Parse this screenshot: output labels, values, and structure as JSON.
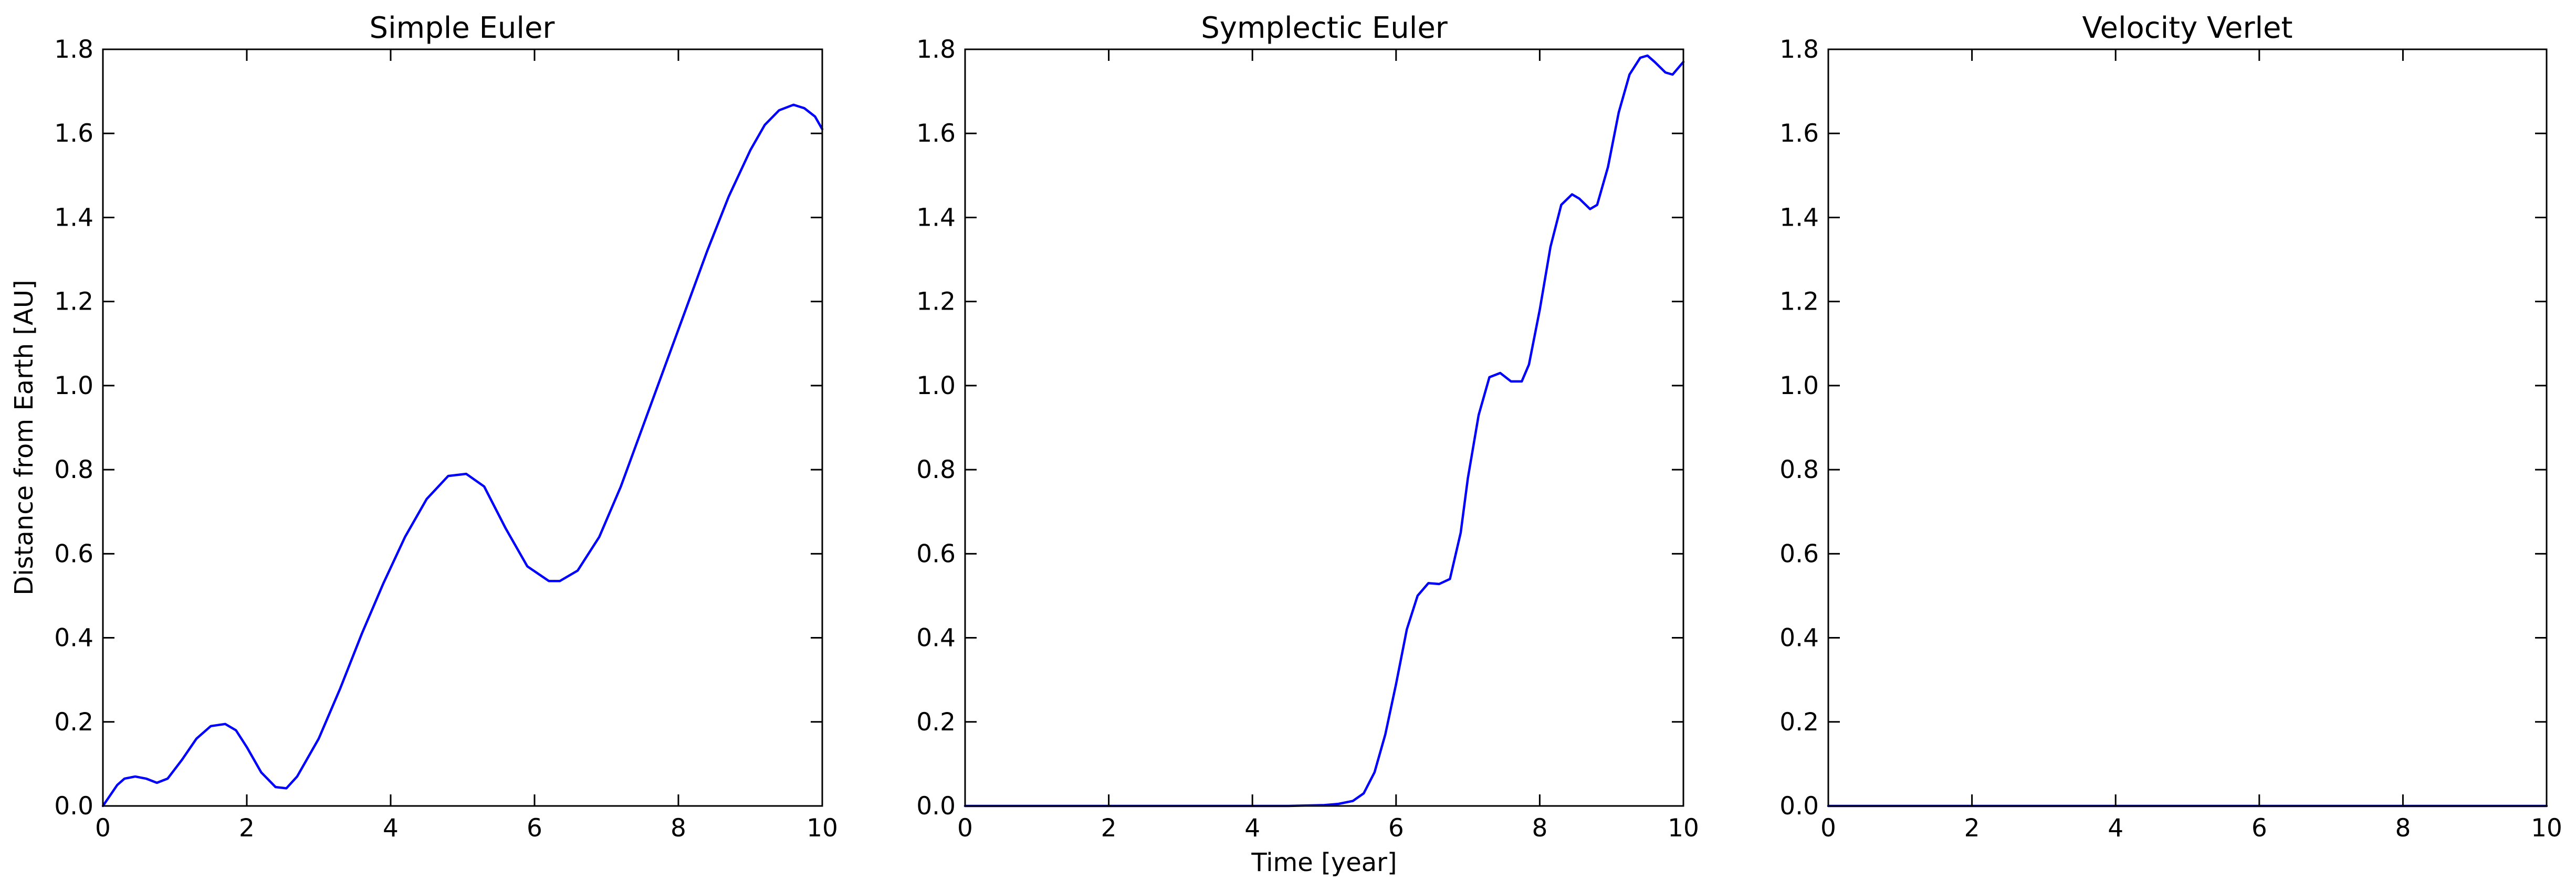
{
  "chart_data": [
    {
      "type": "line",
      "title": "Simple Euler",
      "xlabel": "",
      "ylabel": "Distance from Earth [AU]",
      "xlim": [
        0,
        10
      ],
      "ylim": [
        0,
        1.8
      ],
      "xticks": [
        0,
        2,
        4,
        6,
        8,
        10
      ],
      "yticks": [
        0.0,
        0.2,
        0.4,
        0.6,
        0.8,
        1.0,
        1.2,
        1.4,
        1.6,
        1.8
      ],
      "xtick_labels": [
        "0",
        "2",
        "4",
        "6",
        "8",
        "10"
      ],
      "ytick_labels": [
        "0.0",
        "0.2",
        "0.4",
        "0.6",
        "0.8",
        "1.0",
        "1.2",
        "1.4",
        "1.6",
        "1.8"
      ],
      "grid": false,
      "series": [
        {
          "name": "distance",
          "color": "#0000ff",
          "x": [
            0,
            0.1,
            0.2,
            0.3,
            0.45,
            0.6,
            0.75,
            0.9,
            1.1,
            1.3,
            1.5,
            1.7,
            1.85,
            2.0,
            2.2,
            2.4,
            2.55,
            2.7,
            3.0,
            3.3,
            3.6,
            3.9,
            4.2,
            4.5,
            4.8,
            5.05,
            5.3,
            5.6,
            5.9,
            6.2,
            6.35,
            6.6,
            6.9,
            7.2,
            7.5,
            7.8,
            8.1,
            8.4,
            8.7,
            9.0,
            9.2,
            9.4,
            9.6,
            9.75,
            9.9,
            10.0
          ],
          "y": [
            0.0,
            0.025,
            0.05,
            0.065,
            0.07,
            0.065,
            0.055,
            0.065,
            0.11,
            0.16,
            0.19,
            0.195,
            0.18,
            0.14,
            0.08,
            0.045,
            0.042,
            0.07,
            0.16,
            0.28,
            0.41,
            0.53,
            0.64,
            0.73,
            0.785,
            0.79,
            0.76,
            0.66,
            0.57,
            0.535,
            0.535,
            0.56,
            0.64,
            0.76,
            0.9,
            1.04,
            1.18,
            1.32,
            1.45,
            1.56,
            1.62,
            1.655,
            1.668,
            1.66,
            1.64,
            1.61
          ]
        }
      ]
    },
    {
      "type": "line",
      "title": "Symplectic Euler",
      "xlabel": "Time [year]",
      "ylabel": "",
      "xlim": [
        0,
        10
      ],
      "ylim": [
        0,
        1.8
      ],
      "xticks": [
        0,
        2,
        4,
        6,
        8,
        10
      ],
      "yticks": [
        0.0,
        0.2,
        0.4,
        0.6,
        0.8,
        1.0,
        1.2,
        1.4,
        1.6,
        1.8
      ],
      "xtick_labels": [
        "0",
        "2",
        "4",
        "6",
        "8",
        "10"
      ],
      "ytick_labels": [
        "0.0",
        "0.2",
        "0.4",
        "0.6",
        "0.8",
        "1.0",
        "1.2",
        "1.4",
        "1.6",
        "1.8"
      ],
      "grid": false,
      "series": [
        {
          "name": "distance",
          "color": "#0000ff",
          "x": [
            0,
            1,
            2,
            3,
            4,
            4.5,
            5.0,
            5.2,
            5.4,
            5.55,
            5.7,
            5.85,
            6.0,
            6.15,
            6.3,
            6.45,
            6.6,
            6.75,
            6.9,
            7.0,
            7.15,
            7.3,
            7.45,
            7.6,
            7.75,
            7.85,
            8.0,
            8.15,
            8.3,
            8.45,
            8.55,
            8.7,
            8.8,
            8.95,
            9.1,
            9.25,
            9.4,
            9.5,
            9.6,
            9.75,
            9.85,
            10.0
          ],
          "y": [
            0.0,
            0.0,
            0.0,
            0.0,
            0.0,
            0.0,
            0.002,
            0.005,
            0.012,
            0.03,
            0.08,
            0.17,
            0.29,
            0.42,
            0.5,
            0.53,
            0.528,
            0.54,
            0.65,
            0.78,
            0.93,
            1.02,
            1.03,
            1.01,
            1.01,
            1.05,
            1.18,
            1.33,
            1.43,
            1.455,
            1.445,
            1.42,
            1.43,
            1.52,
            1.65,
            1.74,
            1.78,
            1.785,
            1.77,
            1.745,
            1.74,
            1.77
          ]
        }
      ]
    },
    {
      "type": "line",
      "title": "Velocity Verlet",
      "xlabel": "",
      "ylabel": "",
      "xlim": [
        0,
        10
      ],
      "ylim": [
        0,
        1.8
      ],
      "xticks": [
        0,
        2,
        4,
        6,
        8,
        10
      ],
      "yticks": [
        0.0,
        0.2,
        0.4,
        0.6,
        0.8,
        1.0,
        1.2,
        1.4,
        1.6,
        1.8
      ],
      "xtick_labels": [
        "0",
        "2",
        "4",
        "6",
        "8",
        "10"
      ],
      "ytick_labels": [
        "0.0",
        "0.2",
        "0.4",
        "0.6",
        "0.8",
        "1.0",
        "1.2",
        "1.4",
        "1.6",
        "1.8"
      ],
      "grid": false,
      "series": [
        {
          "name": "distance",
          "color": "#0000ff",
          "x": [
            0,
            2,
            4,
            6,
            8,
            10
          ],
          "y": [
            0.0,
            0.0,
            0.0,
            0.0,
            0.0,
            0.0
          ]
        }
      ]
    }
  ]
}
